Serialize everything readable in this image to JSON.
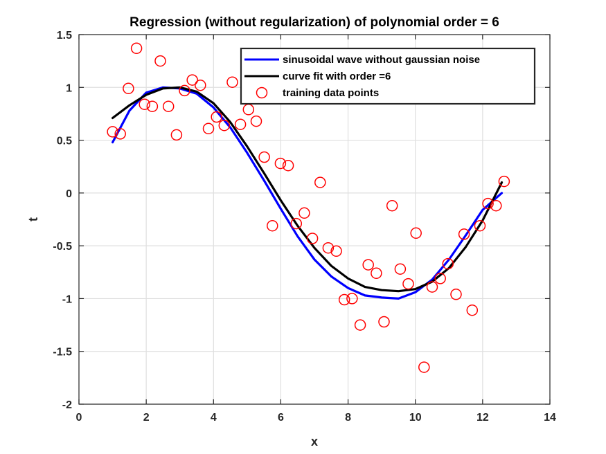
{
  "chart_data": {
    "type": "line",
    "title": "Regression (without regularization) of polynomial order = 6",
    "xlabel": "x",
    "ylabel": "t",
    "xlim": [
      0,
      14
    ],
    "ylim": [
      -2,
      1.5
    ],
    "xticks": [
      "0",
      "2",
      "4",
      "6",
      "8",
      "10",
      "12",
      "14"
    ],
    "yticks": [
      "-2",
      "-1.5",
      "-1",
      "-0.5",
      "0",
      "0.5",
      "1",
      "1.5"
    ],
    "grid": true,
    "legend_position": "top-right",
    "series": [
      {
        "name": "sinusoidal wave without gaussian noise",
        "style": "line",
        "color": "#0000ff",
        "x": [
          1.0,
          1.5,
          2.0,
          2.5,
          3.0,
          3.5,
          4.0,
          4.5,
          5.0,
          5.5,
          6.0,
          6.5,
          7.0,
          7.5,
          8.0,
          8.5,
          9.0,
          9.5,
          10.0,
          10.5,
          11.0,
          11.5,
          12.0,
          12.57
        ],
        "y": [
          0.48,
          0.78,
          0.95,
          1.0,
          0.99,
          0.94,
          0.81,
          0.62,
          0.38,
          0.12,
          -0.15,
          -0.41,
          -0.63,
          -0.79,
          -0.9,
          -0.97,
          -0.99,
          -1.0,
          -0.94,
          -0.82,
          -0.63,
          -0.4,
          -0.16,
          0.0
        ]
      },
      {
        "name": "curve fit with order =6",
        "style": "line",
        "color": "#000000",
        "x": [
          1.0,
          1.5,
          2.0,
          2.5,
          3.0,
          3.5,
          4.0,
          4.5,
          5.0,
          5.5,
          6.0,
          6.5,
          7.0,
          7.5,
          8.0,
          8.5,
          9.0,
          9.5,
          10.0,
          10.5,
          11.0,
          11.5,
          12.0,
          12.57
        ],
        "y": [
          0.71,
          0.83,
          0.93,
          0.99,
          1.0,
          0.96,
          0.85,
          0.67,
          0.44,
          0.19,
          -0.07,
          -0.31,
          -0.52,
          -0.69,
          -0.81,
          -0.89,
          -0.92,
          -0.93,
          -0.91,
          -0.84,
          -0.71,
          -0.51,
          -0.26,
          0.1
        ]
      },
      {
        "name": "training data points",
        "style": "markers",
        "color": "#ff0000",
        "x": [
          1.0,
          1.23,
          1.47,
          1.71,
          1.95,
          2.18,
          2.42,
          2.66,
          2.9,
          3.14,
          3.37,
          3.61,
          3.85,
          4.09,
          4.32,
          4.56,
          4.8,
          5.04,
          5.27,
          5.51,
          5.75,
          5.99,
          6.22,
          6.46,
          6.7,
          6.94,
          7.17,
          7.41,
          7.65,
          7.89,
          8.12,
          8.36,
          8.6,
          8.84,
          9.07,
          9.31,
          9.55,
          9.79,
          10.02,
          10.26,
          10.5,
          10.74,
          10.97,
          11.21,
          11.45,
          11.69,
          11.92,
          12.16,
          12.4,
          12.64
        ],
        "y": [
          0.58,
          0.56,
          0.99,
          1.37,
          0.84,
          0.82,
          1.25,
          0.82,
          0.55,
          0.97,
          1.07,
          1.02,
          0.61,
          0.72,
          0.64,
          1.05,
          0.65,
          0.79,
          0.68,
          0.34,
          -0.31,
          0.28,
          0.26,
          -0.29,
          -0.19,
          -0.43,
          0.1,
          -0.52,
          -0.55,
          -1.01,
          -1.0,
          -1.25,
          -0.68,
          -0.76,
          -1.22,
          -0.12,
          -0.72,
          -0.86,
          -0.38,
          -1.65,
          -0.89,
          -0.81,
          -0.67,
          -0.96,
          -0.39,
          -1.11,
          -0.31,
          -0.1,
          -0.12,
          0.11
        ]
      }
    ]
  }
}
